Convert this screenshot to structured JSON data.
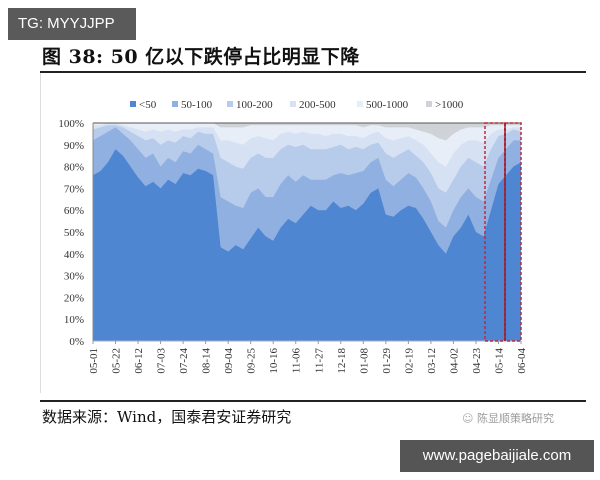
{
  "watermark_top": "TG: MYYJJPP",
  "watermark_bottom": "www.pagebaijiale.com",
  "figure": {
    "title": "图 38:  50 亿以下跌停占比明显下降",
    "source": "数据来源：Wind，国泰君安证券研究",
    "wechat_label": "陈显顺策略研究"
  },
  "chart_data": {
    "type": "area",
    "stacked": true,
    "title": "50亿以下跌停占比明显下降",
    "xlabel": "",
    "ylabel": "",
    "ylim": [
      0,
      100
    ],
    "y_ticks": [
      "0%",
      "10%",
      "20%",
      "30%",
      "40%",
      "50%",
      "60%",
      "70%",
      "80%",
      "90%",
      "100%"
    ],
    "x_ticks": [
      "05-01",
      "05-22",
      "06-12",
      "07-03",
      "07-24",
      "08-14",
      "09-04",
      "09-25",
      "10-16",
      "11-06",
      "11-27",
      "12-18",
      "01-08",
      "01-29",
      "02-19",
      "03-12",
      "04-02",
      "04-23",
      "05-14",
      "06-04"
    ],
    "legend_position": "top",
    "grid": false,
    "colors": {
      "<50": "#4f86d2",
      "50-100": "#8fb0e0",
      "100-200": "#b7cbea",
      "200-500": "#d6e1f3",
      "500-1000": "#e8eef8",
      ">1000": "#cfd2d6"
    },
    "note": "Cumulative boundaries (%), one sample per 1.5 ticks approx; values estimated from pixels.",
    "x_index": [
      0,
      1,
      2,
      3,
      4,
      5,
      6,
      7,
      8,
      9,
      10,
      11,
      12,
      13,
      14,
      15,
      16,
      17,
      18,
      19,
      20,
      21,
      22,
      23,
      24,
      25,
      26,
      27,
      28,
      29,
      30,
      31,
      32,
      33,
      34,
      35,
      36,
      37,
      38,
      39,
      40,
      41,
      42,
      43,
      44,
      45,
      46,
      47,
      48,
      49,
      50,
      51,
      52,
      53,
      54,
      55,
      56,
      57
    ],
    "series": [
      {
        "name": "<50",
        "values": [
          76,
          78,
          82,
          88,
          85,
          80,
          75,
          71,
          73,
          70,
          74,
          72,
          77,
          76,
          79,
          78,
          76,
          43,
          41,
          44,
          42,
          47,
          52,
          48,
          46,
          52,
          56,
          54,
          58,
          62,
          60,
          60,
          64,
          61,
          62,
          60,
          63,
          68,
          70,
          58,
          57,
          60,
          62,
          61,
          56,
          50,
          44,
          40,
          48,
          52,
          58,
          50,
          48,
          60,
          72,
          76,
          80,
          82
        ]
      },
      {
        "name": "50-100",
        "values": [
          92,
          94,
          96,
          98,
          95,
          92,
          88,
          84,
          86,
          80,
          84,
          82,
          87,
          86,
          90,
          88,
          86,
          66,
          64,
          62,
          61,
          68,
          70,
          66,
          66,
          72,
          76,
          73,
          76,
          74,
          74,
          74,
          76,
          77,
          76,
          77,
          78,
          82,
          84,
          74,
          71,
          74,
          77,
          75,
          70,
          64,
          55,
          52,
          60,
          66,
          70,
          66,
          64,
          74,
          84,
          88,
          92,
          92
        ]
      },
      {
        "name": "100-200",
        "values": [
          97,
          98,
          99,
          99,
          98,
          96,
          94,
          92,
          93,
          90,
          92,
          91,
          94,
          93,
          96,
          95,
          95,
          84,
          82,
          80,
          79,
          84,
          86,
          84,
          84,
          88,
          90,
          89,
          90,
          88,
          88,
          88,
          89,
          90,
          88,
          89,
          88,
          90,
          91,
          86,
          84,
          86,
          88,
          85,
          82,
          77,
          70,
          68,
          74,
          80,
          84,
          82,
          80,
          88,
          94,
          95,
          97,
          96
        ]
      },
      {
        "name": "200-500",
        "values": [
          99,
          99,
          100,
          100,
          99,
          98,
          97,
          96,
          97,
          96,
          97,
          96,
          97,
          97,
          98,
          98,
          98,
          92,
          92,
          91,
          90,
          93,
          94,
          93,
          92,
          95,
          96,
          95,
          96,
          95,
          95,
          94,
          95,
          95,
          94,
          94,
          93,
          95,
          96,
          93,
          92,
          93,
          94,
          92,
          90,
          86,
          82,
          80,
          86,
          90,
          92,
          92,
          91,
          95,
          97,
          97,
          98,
          98
        ]
      },
      {
        "name": "500-1000",
        "values": [
          100,
          100,
          100,
          100,
          100,
          100,
          100,
          100,
          100,
          100,
          100,
          100,
          100,
          100,
          100,
          100,
          100,
          98,
          98,
          98,
          98,
          99,
          99,
          99,
          99,
          99,
          99,
          99,
          99,
          99,
          99,
          99,
          99,
          99,
          99,
          99,
          98,
          99,
          99,
          98,
          98,
          98,
          98,
          97,
          96,
          95,
          93,
          92,
          95,
          97,
          98,
          98,
          98,
          99,
          99,
          99,
          99,
          99
        ]
      },
      {
        "name": ">1000",
        "values": [
          100,
          100,
          100,
          100,
          100,
          100,
          100,
          100,
          100,
          100,
          100,
          100,
          100,
          100,
          100,
          100,
          100,
          100,
          100,
          100,
          100,
          100,
          100,
          100,
          100,
          100,
          100,
          100,
          100,
          100,
          100,
          100,
          100,
          100,
          100,
          100,
          100,
          100,
          100,
          100,
          100,
          100,
          100,
          100,
          100,
          100,
          100,
          100,
          100,
          100,
          100,
          100,
          100,
          100,
          100,
          100,
          100,
          100
        ]
      }
    ],
    "highlights": [
      {
        "label": "box-1",
        "from_x": "05-07",
        "to_x": "05-21",
        "style": "dashed-red"
      },
      {
        "label": "box-2",
        "from_x": "05-21",
        "to_x": "06-04",
        "style": "dashed-red"
      }
    ]
  }
}
